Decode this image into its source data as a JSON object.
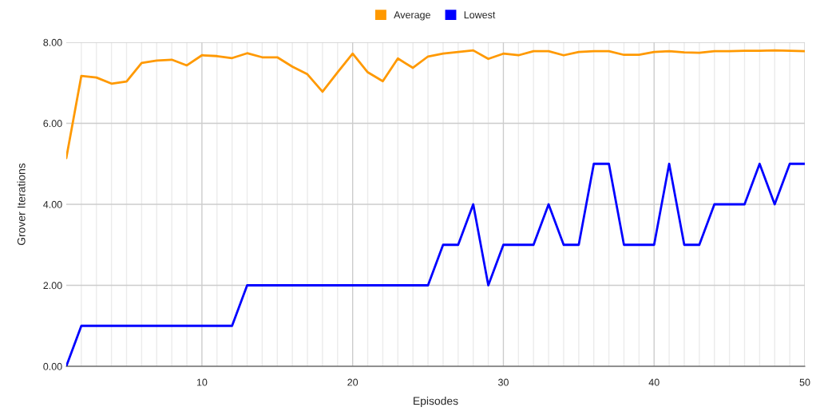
{
  "chart_data": {
    "type": "line",
    "xlabel": "Episodes",
    "ylabel": "Grover Iterations",
    "x": [
      1,
      2,
      3,
      4,
      5,
      6,
      7,
      8,
      9,
      10,
      11,
      12,
      13,
      14,
      15,
      16,
      17,
      18,
      19,
      20,
      21,
      22,
      23,
      24,
      25,
      26,
      27,
      28,
      29,
      30,
      31,
      32,
      33,
      34,
      35,
      36,
      37,
      38,
      39,
      40,
      41,
      42,
      43,
      44,
      45,
      46,
      47,
      48,
      49,
      50
    ],
    "series": [
      {
        "name": "Average",
        "color": "#ff9900",
        "values": [
          5.14,
          7.17,
          7.13,
          6.98,
          7.03,
          7.49,
          7.55,
          7.57,
          7.43,
          7.68,
          7.66,
          7.61,
          7.73,
          7.63,
          7.63,
          7.4,
          7.21,
          6.78,
          7.26,
          7.72,
          7.26,
          7.04,
          7.6,
          7.37,
          7.65,
          7.72,
          7.76,
          7.8,
          7.59,
          7.72,
          7.68,
          7.78,
          7.78,
          7.68,
          7.76,
          7.78,
          7.78,
          7.69,
          7.69,
          7.76,
          7.78,
          7.75,
          7.74,
          7.78,
          7.78,
          7.79,
          7.79,
          7.8,
          7.79,
          7.78
        ]
      },
      {
        "name": "Lowest",
        "color": "#0000ff",
        "values": [
          0,
          1,
          1,
          1,
          1,
          1,
          1,
          1,
          1,
          1,
          1,
          1,
          2,
          2,
          2,
          2,
          2,
          2,
          2,
          2,
          2,
          2,
          2,
          2,
          2,
          3,
          3,
          4,
          2,
          3,
          3,
          3,
          4,
          3,
          3,
          5,
          5,
          3,
          3,
          3,
          5,
          3,
          3,
          4,
          4,
          4,
          5,
          4,
          5,
          5
        ]
      }
    ],
    "xlim": [
      1,
      50
    ],
    "xticks": [
      {
        "value": 2,
        "label": null
      },
      {
        "value": 3,
        "label": null
      },
      {
        "value": 4,
        "label": null
      },
      {
        "value": 5,
        "label": null
      },
      {
        "value": 6,
        "label": null
      },
      {
        "value": 7,
        "label": null
      },
      {
        "value": 8,
        "label": null
      },
      {
        "value": 9,
        "label": null
      },
      10,
      {
        "value": 11,
        "label": null
      },
      {
        "value": 12,
        "label": null
      },
      {
        "value": 13,
        "label": null
      },
      {
        "value": 14,
        "label": null
      },
      {
        "value": 15,
        "label": null
      },
      {
        "value": 16,
        "label": null
      },
      {
        "value": 17,
        "label": null
      },
      {
        "value": 18,
        "label": null
      },
      {
        "value": 19,
        "label": null
      },
      20,
      {
        "value": 21,
        "label": null
      },
      {
        "value": 22,
        "label": null
      },
      {
        "value": 23,
        "label": null
      },
      {
        "value": 24,
        "label": null
      },
      {
        "value": 25,
        "label": null
      },
      {
        "value": 26,
        "label": null
      },
      {
        "value": 27,
        "label": null
      },
      {
        "value": 28,
        "label": null
      },
      {
        "value": 29,
        "label": null
      },
      30,
      {
        "value": 31,
        "label": null
      },
      {
        "value": 32,
        "label": null
      },
      {
        "value": 33,
        "label": null
      },
      {
        "value": 34,
        "label": null
      },
      {
        "value": 35,
        "label": null
      },
      {
        "value": 36,
        "label": null
      },
      {
        "value": 37,
        "label": null
      },
      {
        "value": 38,
        "label": null
      },
      {
        "value": 39,
        "label": null
      },
      40,
      {
        "value": 41,
        "label": null
      },
      {
        "value": 42,
        "label": null
      },
      {
        "value": 43,
        "label": null
      },
      {
        "value": 44,
        "label": null
      },
      {
        "value": 45,
        "label": null
      },
      {
        "value": 46,
        "label": null
      },
      {
        "value": 47,
        "label": null
      },
      {
        "value": 48,
        "label": null
      },
      {
        "value": 49,
        "label": null
      },
      50
    ],
    "ylim": [
      0,
      8
    ],
    "yticks": [
      {
        "value": 0,
        "label": "0.00"
      },
      {
        "value": 2,
        "label": "2.00"
      },
      {
        "value": 4,
        "label": "4.00"
      },
      {
        "value": 6,
        "label": "6.00"
      },
      {
        "value": 8,
        "label": "8.00"
      }
    ],
    "grid": true,
    "legend": "top",
    "line_style": "solid"
  }
}
